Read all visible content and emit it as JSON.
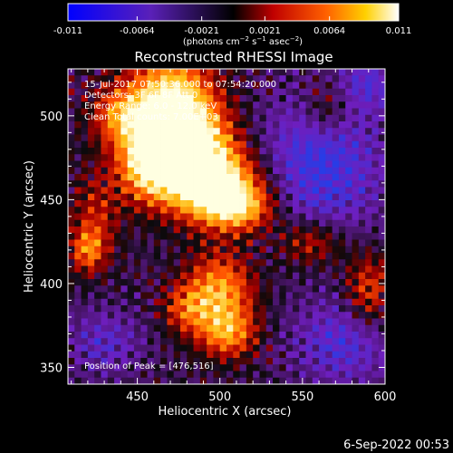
{
  "colorbar": {
    "tick_labels": [
      "-0.011",
      "-0.0064",
      "-0.0021",
      "0.0021",
      "0.0064",
      "0.011"
    ],
    "tick_values": [
      -0.011,
      -0.0064,
      -0.0021,
      0.0021,
      0.0064,
      0.011
    ],
    "range": [
      -0.011,
      0.011
    ],
    "units_prefix": "(photons cm",
    "units_exp1": "−2",
    "units_mid": " s",
    "units_exp2": "−1",
    "units_mid2": " asec",
    "units_exp3": "−2",
    "units_suffix": ")"
  },
  "chart_data": {
    "type": "heatmap",
    "title": "Reconstructed RHESSI Image",
    "xlabel": "Heliocentric X (arcsec)",
    "ylabel": "Heliocentric Y (arcsec)",
    "xlim": [
      408,
      600
    ],
    "ylim": [
      340,
      528
    ],
    "x_ticks": [
      450,
      500,
      550,
      600
    ],
    "y_ticks": [
      350,
      400,
      450,
      500
    ],
    "x_tick_labels": [
      "450",
      "500",
      "550",
      "600"
    ],
    "y_tick_labels": [
      "350",
      "400",
      "450",
      "500"
    ],
    "peak_position": [
      476,
      516
    ],
    "colors": {
      "low": "#6a16b0",
      "mid_low": "#101010",
      "mid": "#b00000",
      "mid_high": "#ff6a00",
      "high": "#ffffe0"
    }
  },
  "annotations": {
    "time_range": "15-Jul-2017 07:50:36.000 to 07:54:20.000",
    "detectors": "Detectors: 3F 6F 8F Att 0",
    "energy": "Energy Range: 6.0 - 12.0 keV",
    "clean": "Clean     Total counts: 7.00E+03",
    "peak": "Position of Peak = [476,516]"
  },
  "footer": {
    "date": "6-Sep-2022 00:53"
  }
}
